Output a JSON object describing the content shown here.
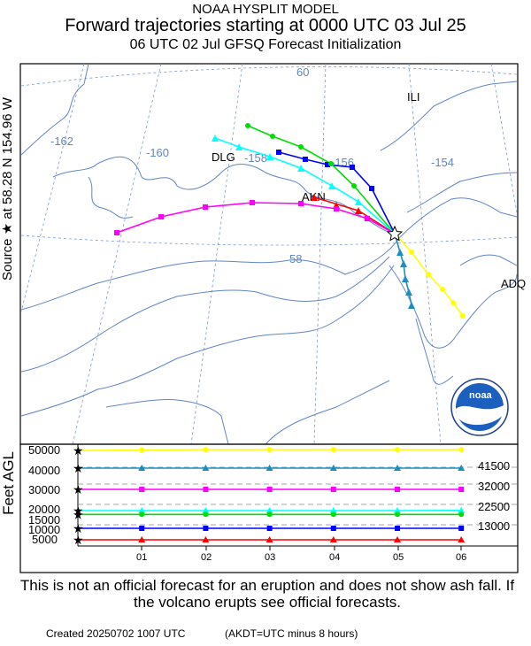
{
  "header": {
    "line1": "NOAA HYSPLIT MODEL",
    "line2": "Forward trajectories starting at 0000 UTC 03 Jul 25",
    "line3": "06 UTC 02 Jul    GFSQ  Forecast Initialization"
  },
  "source_label": "Source ★  at    58.28 N  154.96 W",
  "map": {
    "lon_labels": [
      "-162",
      "-160",
      "-158",
      "-156",
      "-154"
    ],
    "lat_labels": [
      "60",
      "58"
    ],
    "places": [
      "ILI",
      "DLG",
      "AKN",
      "ADQ"
    ],
    "logo_text": "noaa",
    "colors": {
      "coast": "#5f86c4",
      "grid": "#7a9ad0"
    }
  },
  "height_panel": {
    "ylabel": "Feet AGL",
    "yticks": [
      "50000",
      "40000",
      "30000",
      "20000",
      "15000",
      "10000",
      "5000"
    ],
    "xticks": [
      "01",
      "02",
      "03",
      "04",
      "05",
      "06"
    ],
    "right_labels": [
      "41500",
      "32000",
      "22500",
      "13000"
    ]
  },
  "chart_data": {
    "type": "line",
    "title": "Forward trajectories starting at 0000 UTC 03 Jul 25",
    "xlabel": "",
    "ylabel": "Feet AGL",
    "x": [
      0,
      1,
      2,
      3,
      4,
      5,
      6
    ],
    "series": [
      {
        "color": "#ffff00",
        "values": [
          49500,
          49800,
          50000,
          50000,
          50000,
          50000,
          50000
        ]
      },
      {
        "color": "#1a8fbf",
        "values": [
          41500,
          41500,
          41500,
          41500,
          41500,
          41500,
          41500
        ]
      },
      {
        "color": "#ff00ff",
        "values": [
          32000,
          32000,
          32000,
          32000,
          32000,
          32000,
          31500
        ]
      },
      {
        "color": "#00ffff",
        "values": [
          22500,
          22500,
          22500,
          22500,
          22500,
          22500,
          22000
        ]
      },
      {
        "color": "#00dd00",
        "values": [
          17800,
          17800,
          17800,
          17800,
          17800,
          17800,
          17800
        ]
      },
      {
        "color": "#0000ff",
        "values": [
          13000,
          13000,
          13000,
          13000,
          13000,
          13000,
          13000
        ]
      },
      {
        "color": "#ff0000",
        "values": [
          5000,
          5000,
          5000,
          5000,
          5000,
          5000,
          5000
        ]
      }
    ]
  },
  "disclaimer": "This is not an official forecast for an eruption and does not show ash fall. If the volcano erupts see official forecasts.",
  "created": "Created 20250702 1007 UTC",
  "akdt_note": "(AKDT=UTC minus 8 hours)"
}
